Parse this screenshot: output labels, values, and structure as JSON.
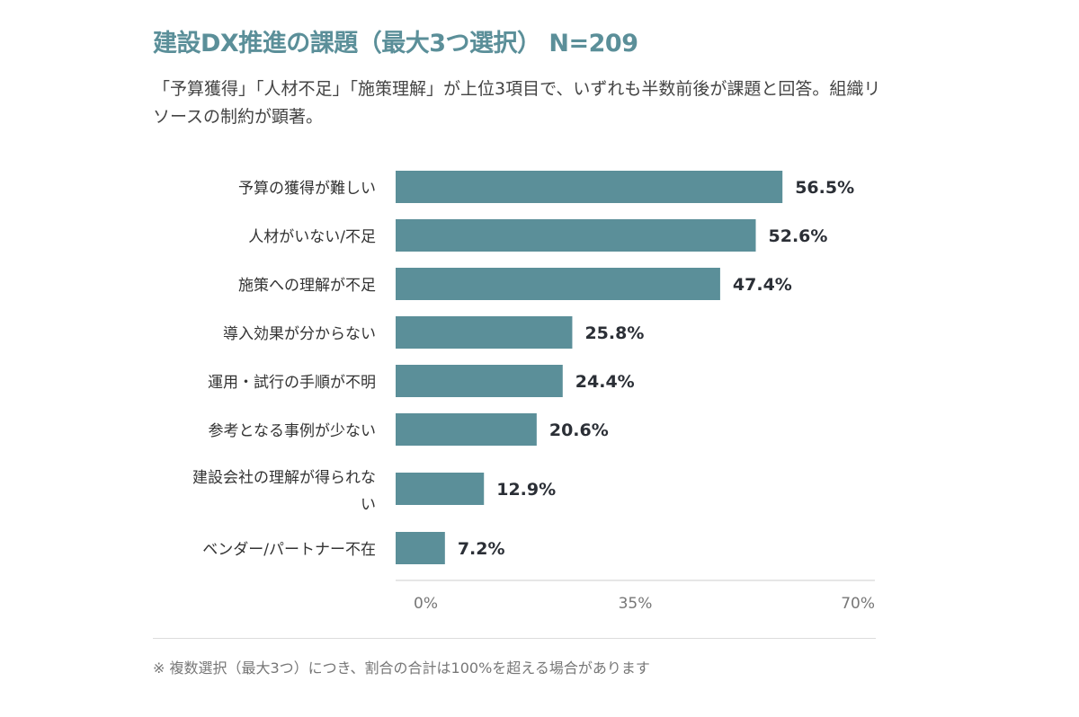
{
  "chart_data": {
    "type": "bar",
    "orientation": "horizontal",
    "title": "建設DX推進の課題（最大3つ選択） N=209",
    "subtitle": "「予算獲得」「人材不足」「施策理解」が上位3項目で、いずれも半数前後が課題と回答。組織リソースの制約が顕著。",
    "categories": [
      "予算の獲得が難しい",
      "人材がいない/不足",
      "施策への理解が不足",
      "導入効果が分からない",
      "運用・試行の手順が不明",
      "参考となる事例が少ない",
      "建設会社の理解が得られない",
      "ベンダー/パートナー不在"
    ],
    "values": [
      56.5,
      52.6,
      47.4,
      25.8,
      24.4,
      20.6,
      12.9,
      7.2
    ],
    "value_labels": [
      "56.5%",
      "52.6%",
      "47.4%",
      "25.8%",
      "24.4%",
      "20.6%",
      "12.9%",
      "7.2%"
    ],
    "xlim": [
      0,
      70
    ],
    "ticks": [
      "0%",
      "35%",
      "70%"
    ],
    "tick_values": [
      0,
      35,
      70
    ],
    "grid": false,
    "bar_color": "#5b8f99",
    "title_color": "#5b8f99"
  },
  "footnote": "※ 複数選択（最大3つ）につき、割合の合計は100%を超える場合があります"
}
